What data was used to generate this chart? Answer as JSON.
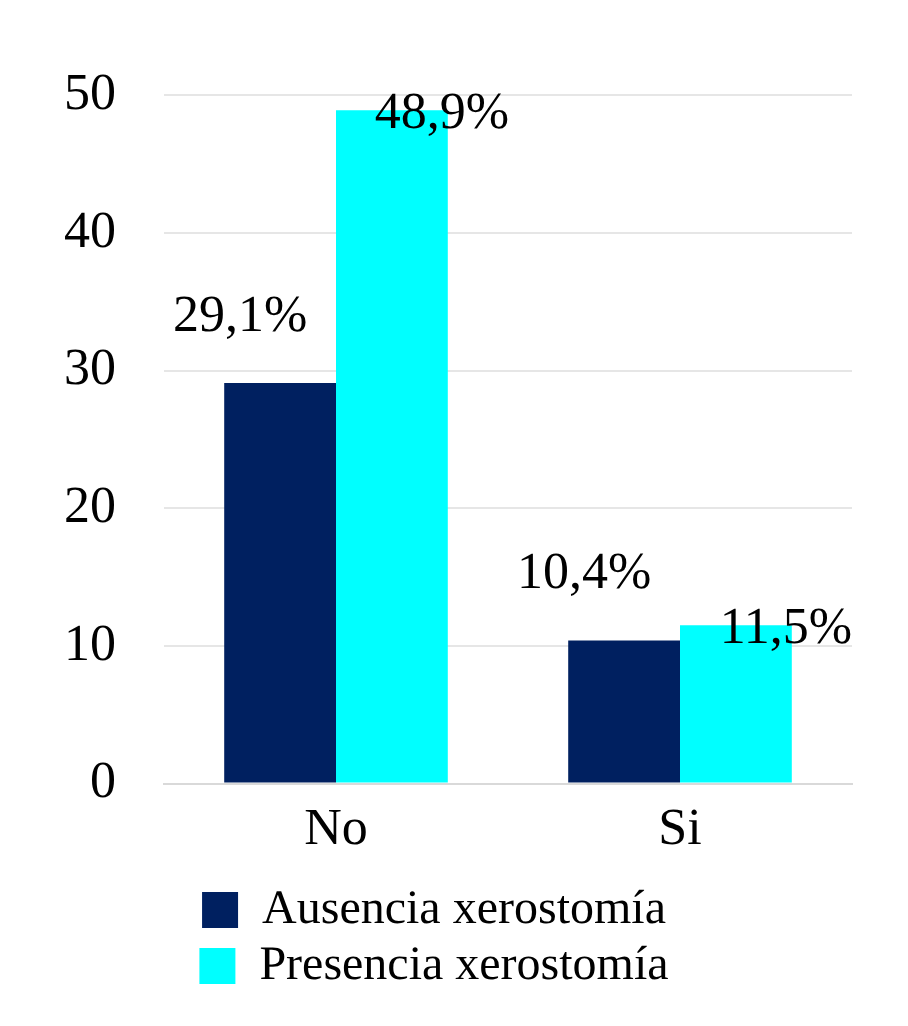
{
  "chart_data": {
    "type": "bar",
    "categories": [
      "No",
      "Si"
    ],
    "series": [
      {
        "name": "Ausencia xerostomía",
        "color": "#002060",
        "values": [
          29.1,
          10.4
        ],
        "value_labels": [
          "29,1%",
          "10,4%"
        ]
      },
      {
        "name": "Presencia xerostomía",
        "color": "#00ffff",
        "values": [
          48.9,
          11.5
        ],
        "value_labels": [
          "48,9%",
          "11,5%"
        ]
      }
    ],
    "ylim": [
      0,
      50
    ],
    "yticks": [
      0,
      10,
      20,
      30,
      40,
      50
    ],
    "grid": "y",
    "legend": "bottom"
  }
}
